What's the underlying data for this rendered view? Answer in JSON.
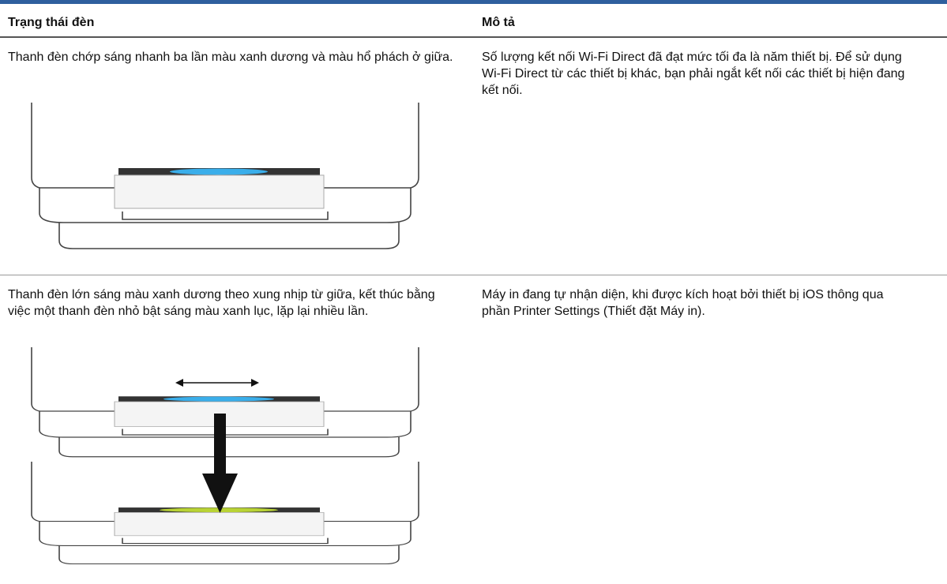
{
  "table": {
    "header": [
      "Trạng thái đèn",
      "Mô tả"
    ],
    "rows": [
      [
        "Thanh đèn chớp sáng nhanh ba lần màu xanh dương và màu hổ phách ở giữa.",
        "Số lượng kết nối Wi-Fi Direct đã đạt mức tối đa là năm thiết bị. Để sử dụng Wi-Fi Direct từ các thiết bị khác, bạn phải ngắt kết nối các thiết bị hiện đang kết nối."
      ],
      [
        "Thanh đèn lớn sáng màu xanh dương theo xung nhịp từ giữa, kết thúc bằng việc một thanh đèn nhỏ bật sáng màu xanh lục, lặp lại nhiều lần.",
        "Máy in đang tự nhận diện, khi được kích hoạt bởi thiết bị iOS thông qua phần Printer Settings (Thiết đặt Máy in)."
      ]
    ]
  }
}
